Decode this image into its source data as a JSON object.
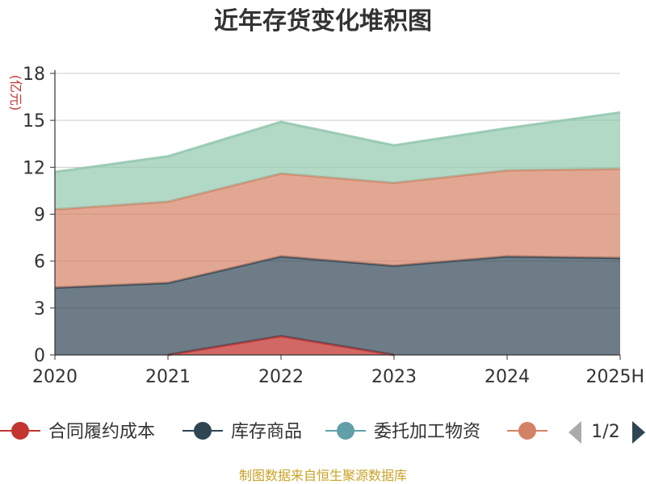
{
  "chart_data": {
    "type": "area",
    "stacked": true,
    "title": "近年存货变化堆积图",
    "unit_label": "(亿元)",
    "categories": [
      "2020",
      "2021",
      "2022",
      "2023",
      "2024",
      "2025H"
    ],
    "ylim": [
      0,
      18
    ],
    "yticks": [
      0,
      3,
      6,
      9,
      12,
      15,
      18
    ],
    "grid": true,
    "series": [
      {
        "name": "合同履约成本",
        "values": [
          null,
          0.0,
          1.2,
          0.0,
          null,
          null
        ]
      },
      {
        "name": "库存商品",
        "values": [
          4.3,
          4.6,
          5.1,
          5.7,
          6.3,
          6.2
        ]
      },
      {
        "name": "委托加工物资",
        "values": [
          null,
          null,
          null,
          null,
          null,
          null
        ]
      },
      {
        "name": "",
        "values": [
          5.0,
          5.2,
          5.3,
          5.3,
          5.5,
          5.7
        ]
      },
      {
        "name": "",
        "values": [
          2.4,
          2.9,
          3.3,
          2.4,
          2.7,
          3.6
        ]
      }
    ],
    "legend": {
      "position": "bottom",
      "items": [
        {
          "name": "合同履约成本",
          "color": "#c23531"
        },
        {
          "name": "库存商品",
          "color": "#2f4554"
        },
        {
          "name": "委托加工物资",
          "color": "#61a0a8"
        },
        {
          "name": "",
          "color": "#d48265"
        }
      ],
      "page": "1/2"
    },
    "colors": {
      "contract_cost": "#c23531",
      "inventory": "#2f4554",
      "processing": "#61a0a8",
      "series4_fill": "#d48265",
      "series5_fill": "#91c7ae"
    },
    "source": "制图数据来自恒生聚源数据库"
  }
}
